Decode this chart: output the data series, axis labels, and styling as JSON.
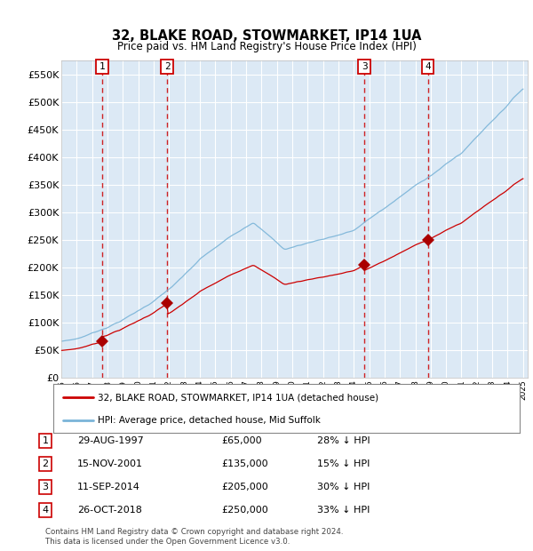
{
  "title": "32, BLAKE ROAD, STOWMARKET, IP14 1UA",
  "subtitle": "Price paid vs. HM Land Registry's House Price Index (HPI)",
  "y_ticks": [
    0,
    50000,
    100000,
    150000,
    200000,
    250000,
    300000,
    350000,
    400000,
    450000,
    500000,
    550000
  ],
  "y_tick_labels": [
    "£0",
    "£50K",
    "£100K",
    "£150K",
    "£200K",
    "£250K",
    "£300K",
    "£350K",
    "£400K",
    "£450K",
    "£500K",
    "£550K"
  ],
  "sales": [
    {
      "year": 1997.65,
      "price": 65000,
      "label": "1"
    },
    {
      "year": 2001.87,
      "price": 135000,
      "label": "2"
    },
    {
      "year": 2014.69,
      "price": 205000,
      "label": "3"
    },
    {
      "year": 2018.81,
      "price": 250000,
      "label": "4"
    }
  ],
  "sale_box_labels": [
    {
      "num": "1",
      "date": "29-AUG-1997",
      "price": "£65,000",
      "hpi": "28% ↓ HPI"
    },
    {
      "num": "2",
      "date": "15-NOV-2001",
      "price": "£135,000",
      "hpi": "15% ↓ HPI"
    },
    {
      "num": "3",
      "date": "11-SEP-2014",
      "price": "£205,000",
      "hpi": "30% ↓ HPI"
    },
    {
      "num": "4",
      "date": "26-OCT-2018",
      "price": "£250,000",
      "hpi": "33% ↓ HPI"
    }
  ],
  "legend_line1": "32, BLAKE ROAD, STOWMARKET, IP14 1UA (detached house)",
  "legend_line2": "HPI: Average price, detached house, Mid Suffolk",
  "footer": "Contains HM Land Registry data © Crown copyright and database right 2024.\nThis data is licensed under the Open Government Licence v3.0.",
  "price_line_color": "#cc0000",
  "hpi_line_color": "#7ab4d8",
  "sale_marker_color": "#aa0000",
  "dashed_line_color": "#cc0000",
  "background_chart": "#dce9f5",
  "background_fig": "#ffffff",
  "grid_color": "#ffffff",
  "y_min": 0,
  "y_max": 575000,
  "x_min": 1995,
  "x_max": 2025.3
}
